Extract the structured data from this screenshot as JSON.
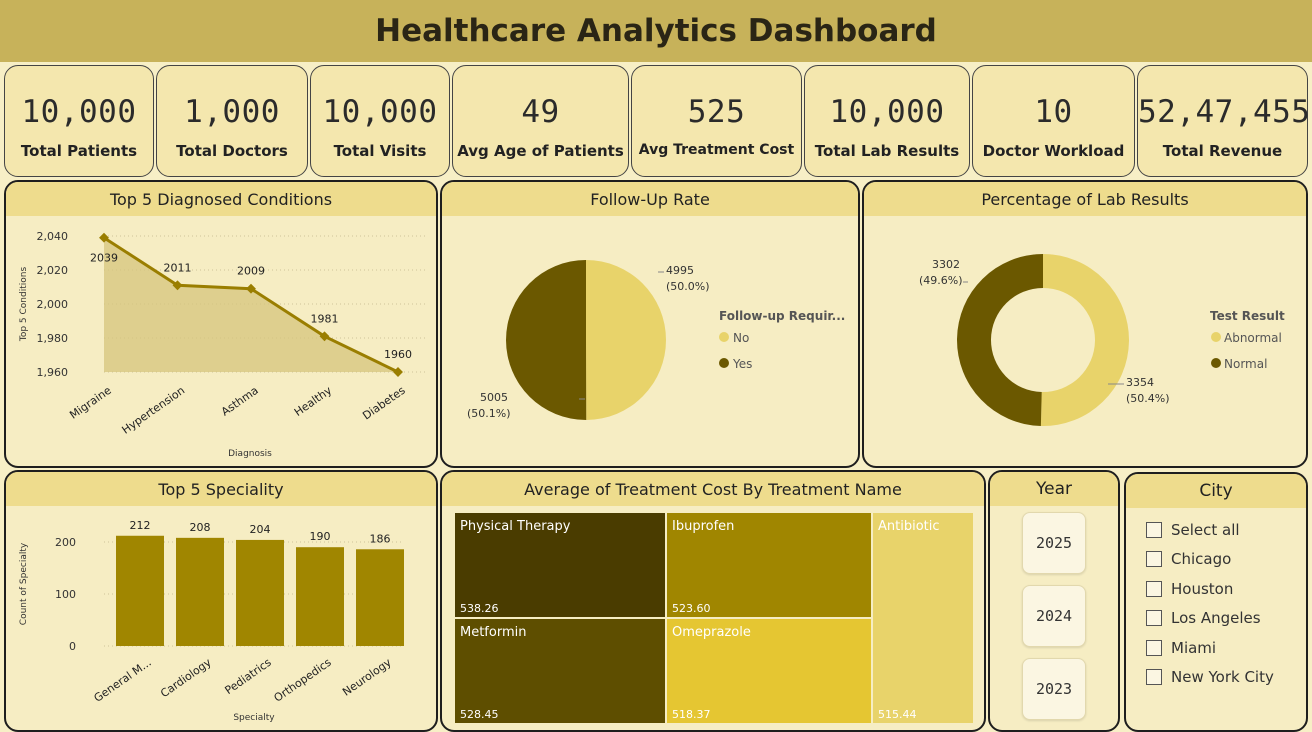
{
  "title": "Healthcare Analytics Dashboard",
  "kpis": [
    {
      "value": "10,000",
      "label": "Total Patients"
    },
    {
      "value": "1,000",
      "label": "Total Doctors"
    },
    {
      "value": "10,000",
      "label": "Total Visits"
    },
    {
      "value": "49",
      "label": "Avg Age of Patients"
    },
    {
      "value": "525",
      "label": "Avg Treatment Cost"
    },
    {
      "value": "10,000",
      "label": "Total Lab Results"
    },
    {
      "value": "10",
      "label": "Doctor Workload"
    },
    {
      "value": "52,47,455",
      "label": "Total Revenue"
    }
  ],
  "colors": {
    "dark": "#6b5800",
    "light": "#e8d36a",
    "olive": "#a08600",
    "header": "#eedc8d"
  },
  "chart_data": [
    {
      "type": "area",
      "title": "Top 5 Diagnosed Conditions",
      "xlabel": "Diagnosis",
      "ylabel": "Top 5 Conditions",
      "categories": [
        "Migraine",
        "Hypertension",
        "Asthma",
        "Healthy",
        "Diabetes"
      ],
      "values": [
        2039,
        2011,
        2009,
        1981,
        1960
      ],
      "ylim": [
        1960,
        2040
      ],
      "yticks": [
        "1,960",
        "1,980",
        "2,000",
        "2,020",
        "2,040"
      ],
      "data_labels": [
        "2039",
        "2011",
        "2009",
        "1981",
        "1960"
      ]
    },
    {
      "type": "pie",
      "title": "Follow-Up Rate",
      "legend_title": "Follow-up Requir...",
      "slices": [
        {
          "name": "No",
          "value": 4995,
          "label": "4995",
          "pct": "(50.0%)",
          "color": "#e8d36a"
        },
        {
          "name": "Yes",
          "value": 5005,
          "label": "5005",
          "pct": "(50.1%)",
          "color": "#6b5800"
        }
      ]
    },
    {
      "type": "pie",
      "title": "Percentage of Lab Results",
      "legend_title": "Test Result",
      "slices": [
        {
          "name": "Abnormal",
          "value": 3354,
          "label": "3354",
          "pct": "(50.4%)",
          "color": "#e8d36a"
        },
        {
          "name": "Normal",
          "value": 3302,
          "label": "3302",
          "pct": "(49.6%)",
          "color": "#6b5800"
        }
      ]
    },
    {
      "type": "bar",
      "title": "Top 5 Speciality",
      "xlabel": "Specialty",
      "ylabel": "Count of Specialty",
      "categories": [
        "General M...",
        "Cardiology",
        "Pediatrics",
        "Orthopedics",
        "Neurology"
      ],
      "values": [
        212,
        208,
        204,
        190,
        186
      ],
      "ylim": [
        0,
        250
      ],
      "yticks": [
        "0",
        "100",
        "200"
      ],
      "data_labels": [
        "212",
        "208",
        "204",
        "190",
        "186"
      ]
    },
    {
      "type": "table",
      "title": "Average of Treatment Cost By Treatment Name",
      "items": [
        {
          "name": "Physical Therapy",
          "value": "538.26",
          "color": "#4a3c00"
        },
        {
          "name": "Metformin",
          "value": "528.45",
          "color": "#5e4e00"
        },
        {
          "name": "Ibuprofen",
          "value": "523.60",
          "color": "#a08600"
        },
        {
          "name": "Omeprazole",
          "value": "518.37",
          "color": "#e5c632"
        },
        {
          "name": "Antibiotic",
          "value": "515.44",
          "color": "#e8d36a"
        }
      ]
    }
  ],
  "year_filter": {
    "title": "Year",
    "options": [
      "2025",
      "2024",
      "2023"
    ]
  },
  "city_filter": {
    "title": "City",
    "options": [
      "Select all",
      "Chicago",
      "Houston",
      "Los Angeles",
      "Miami",
      "New York City"
    ]
  }
}
